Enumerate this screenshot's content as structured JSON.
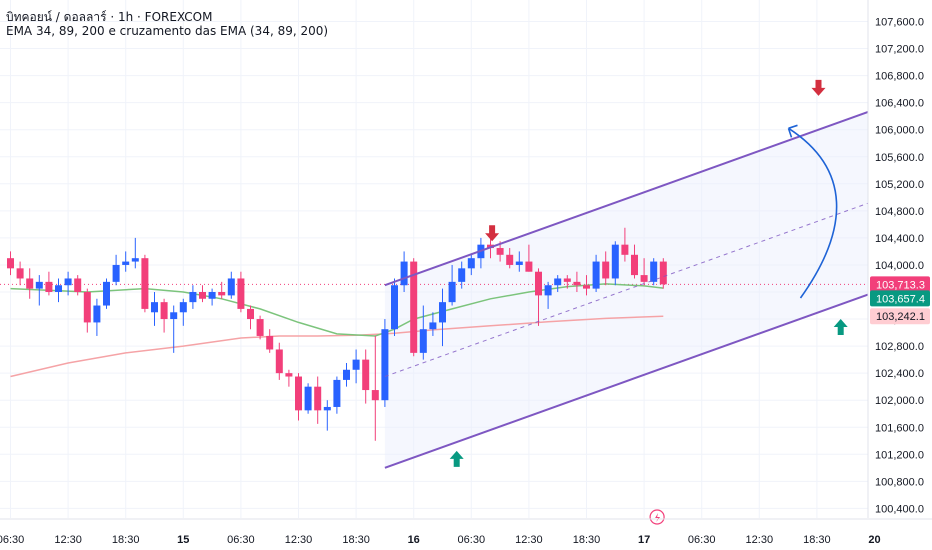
{
  "header": {
    "title": "บิทคอยน์ / ดอลลาร์ · 1h · FOREXCOM",
    "indicator": "EMA 34, 89, 200 e cruzamento das EMA (34, 89, 200)"
  },
  "colors": {
    "up": "#2962ff",
    "down": "#f23f7a",
    "ema_fast": "#7cc47c",
    "ema_slow": "#f5a3a6",
    "channel": "#7e57c2",
    "arrow_curve": "#1e63d6",
    "arrow_down": "#d32f3f",
    "arrow_up": "#089981",
    "price_line": "#f23f7a",
    "price_badge_current": "#f23f7a",
    "price_badge_ema_fast": "#089981",
    "price_badge_ema_slow": "#ffcdd2"
  },
  "chart_data": {
    "type": "candlestick",
    "ylim": [
      100300,
      107800
    ],
    "y_ticks": [
      100400,
      100800,
      101200,
      101600,
      102000,
      102400,
      102800,
      103200,
      103600,
      104000,
      104400,
      104800,
      105200,
      105600,
      106000,
      106400,
      106800,
      107200,
      107600
    ],
    "y_tick_labels": [
      "100,400.0",
      "100,800.0",
      "101,200.0",
      "101,600.0",
      "102,000.0",
      "102,400.0",
      "102,800.0",
      "103,200.0",
      "103,600.0",
      "104,000.0",
      "104,400.0",
      "104,800.0",
      "105,200.0",
      "105,600.0",
      "106,000.0",
      "106,400.0",
      "106,800.0",
      "107,200.0",
      "107,600.0"
    ],
    "x_ticks": [
      {
        "i": 0,
        "label": "06:30",
        "bold": false
      },
      {
        "i": 6,
        "label": "12:30",
        "bold": false
      },
      {
        "i": 12,
        "label": "18:30",
        "bold": false
      },
      {
        "i": 18,
        "label": "15",
        "bold": true
      },
      {
        "i": 24,
        "label": "06:30",
        "bold": false
      },
      {
        "i": 30,
        "label": "12:30",
        "bold": false
      },
      {
        "i": 36,
        "label": "18:30",
        "bold": false
      },
      {
        "i": 42,
        "label": "16",
        "bold": true
      },
      {
        "i": 48,
        "label": "06:30",
        "bold": false
      },
      {
        "i": 54,
        "label": "12:30",
        "bold": false
      },
      {
        "i": 60,
        "label": "18:30",
        "bold": false
      },
      {
        "i": 66,
        "label": "17",
        "bold": true
      },
      {
        "i": 72,
        "label": "06:30",
        "bold": false
      },
      {
        "i": 78,
        "label": "12:30",
        "bold": false
      },
      {
        "i": 84,
        "label": "18:30",
        "bold": false
      },
      {
        "i": 90,
        "label": "20",
        "bold": true
      }
    ],
    "candles": [
      [
        104100,
        104200,
        103850,
        103950
      ],
      [
        103950,
        104050,
        103700,
        103800
      ],
      [
        103800,
        103950,
        103500,
        103650
      ],
      [
        103650,
        103850,
        103400,
        103750
      ],
      [
        103750,
        103900,
        103550,
        103600
      ],
      [
        103600,
        103800,
        103450,
        103700
      ],
      [
        103700,
        103900,
        103550,
        103800
      ],
      [
        103800,
        103850,
        103550,
        103600
      ],
      [
        103600,
        103650,
        103000,
        103150
      ],
      [
        103150,
        103500,
        102950,
        103400
      ],
      [
        103400,
        103800,
        103350,
        103750
      ],
      [
        103750,
        104150,
        103700,
        104000
      ],
      [
        104000,
        104200,
        103900,
        104050
      ],
      [
        104050,
        104400,
        103950,
        104100
      ],
      [
        104100,
        104150,
        103300,
        103350
      ],
      [
        103300,
        103600,
        103100,
        103450
      ],
      [
        103450,
        103500,
        103000,
        103200
      ],
      [
        103200,
        103400,
        102700,
        103300
      ],
      [
        103300,
        103500,
        103100,
        103450
      ],
      [
        103450,
        103700,
        103350,
        103600
      ],
      [
        103600,
        103700,
        103450,
        103500
      ],
      [
        103500,
        103650,
        103400,
        103600
      ],
      [
        103600,
        103750,
        103500,
        103550
      ],
      [
        103550,
        103900,
        103500,
        103800
      ],
      [
        103800,
        103900,
        103300,
        103350
      ],
      [
        103350,
        103400,
        103050,
        103200
      ],
      [
        103200,
        103250,
        102900,
        102950
      ],
      [
        102950,
        103050,
        102700,
        102750
      ],
      [
        102750,
        102850,
        102300,
        102400
      ],
      [
        102400,
        102450,
        102200,
        102350
      ],
      [
        102350,
        102400,
        101700,
        101850
      ],
      [
        101850,
        102250,
        101800,
        102200
      ],
      [
        102200,
        102350,
        101650,
        101850
      ],
      [
        101850,
        102000,
        101550,
        101900
      ],
      [
        101900,
        102350,
        101800,
        102300
      ],
      [
        102300,
        102550,
        102200,
        102450
      ],
      [
        102450,
        102750,
        102250,
        102600
      ],
      [
        102600,
        102750,
        101950,
        102150
      ],
      [
        102150,
        102950,
        101400,
        102000
      ],
      [
        102000,
        103200,
        101900,
        103050
      ],
      [
        103050,
        103800,
        102950,
        103700
      ],
      [
        103700,
        104200,
        103600,
        104050
      ],
      [
        104050,
        104100,
        102650,
        102700
      ],
      [
        102700,
        103400,
        102600,
        103050
      ],
      [
        103050,
        103300,
        102950,
        103150
      ],
      [
        103150,
        103650,
        102800,
        103450
      ],
      [
        103450,
        104000,
        103400,
        103750
      ],
      [
        103750,
        104050,
        103650,
        103950
      ],
      [
        103950,
        104150,
        103850,
        104100
      ],
      [
        104100,
        104400,
        103950,
        104300
      ],
      [
        104300,
        104500,
        104100,
        104250
      ],
      [
        104250,
        104350,
        104050,
        104150
      ],
      [
        104150,
        104250,
        103950,
        104000
      ],
      [
        104000,
        104200,
        103900,
        104050
      ],
      [
        104050,
        104300,
        103900,
        103900
      ],
      [
        103900,
        103950,
        103100,
        103550
      ],
      [
        103550,
        103750,
        103350,
        103700
      ],
      [
        103700,
        103850,
        103600,
        103800
      ],
      [
        103800,
        103850,
        103650,
        103750
      ],
      [
        103750,
        103900,
        103600,
        103700
      ],
      [
        103700,
        103850,
        103550,
        103650
      ],
      [
        103650,
        104150,
        103600,
        104050
      ],
      [
        104050,
        104200,
        103700,
        103800
      ],
      [
        103800,
        104350,
        103700,
        104300
      ],
      [
        104300,
        104550,
        104050,
        104150
      ],
      [
        104150,
        104300,
        103800,
        103850
      ],
      [
        103850,
        104100,
        103700,
        103750
      ],
      [
        103750,
        104100,
        103700,
        104050
      ],
      [
        104050,
        104100,
        103650,
        103713.3
      ]
    ],
    "ema_fast": {
      "name": "",
      "points": [
        [
          0,
          103650
        ],
        [
          8,
          103600
        ],
        [
          14,
          103650
        ],
        [
          18,
          103600
        ],
        [
          22,
          103500
        ],
        [
          26,
          103350
        ],
        [
          30,
          103150
        ],
        [
          34,
          102980
        ],
        [
          38,
          102950
        ],
        [
          40,
          103050
        ],
        [
          42,
          103200
        ],
        [
          46,
          103350
        ],
        [
          50,
          103500
        ],
        [
          54,
          103600
        ],
        [
          58,
          103680
        ],
        [
          62,
          103720
        ],
        [
          66,
          103690
        ],
        [
          68,
          103657.4
        ]
      ]
    },
    "ema_slow": {
      "name": "",
      "points": [
        [
          0,
          102350
        ],
        [
          6,
          102550
        ],
        [
          12,
          102700
        ],
        [
          18,
          102800
        ],
        [
          24,
          102920
        ],
        [
          28,
          102950
        ],
        [
          32,
          102950
        ],
        [
          36,
          102960
        ],
        [
          40,
          102990
        ],
        [
          44,
          103040
        ],
        [
          50,
          103100
        ],
        [
          56,
          103160
        ],
        [
          62,
          103210
        ],
        [
          68,
          103242.1
        ]
      ]
    },
    "last_price": 103713.3,
    "price_labels": [
      {
        "role": "current",
        "value": "103,713.3"
      },
      {
        "role": "ema_fast",
        "value": "103,657.4"
      },
      {
        "role": "ema_slow",
        "value": "103,242.1"
      }
    ],
    "channel": {
      "upper": [
        [
          39,
          103700
        ],
        [
          93,
          106450
        ]
      ],
      "lower": [
        [
          39,
          101000
        ],
        [
          93,
          103750
        ]
      ],
      "mid": [
        [
          39,
          102350
        ],
        [
          93,
          105100
        ]
      ]
    },
    "annotations": {
      "curved_arrow": {
        "from": [
          85,
          103600
        ],
        "to": [
          85,
          106050
        ]
      },
      "down_arrows": [
        [
          51,
          104350
        ],
        [
          85,
          106500
        ]
      ],
      "up_arrows": [
        [
          47,
          101250
        ],
        [
          87,
          103200
        ]
      ]
    },
    "live_icon": "lightning-icon"
  }
}
